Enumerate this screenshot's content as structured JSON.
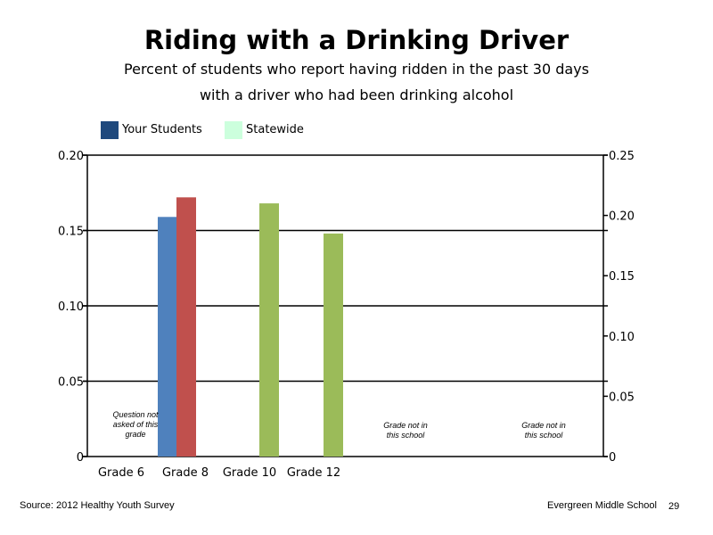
{
  "chart_data": {
    "type": "bar",
    "title": "Riding with a Drinking Driver",
    "subtitle_lines": [
      "Percent of students who report having ridden in the past 30 days",
      "with a driver who had been drinking alcohol"
    ],
    "categories": [
      "Grade 6",
      "Grade 8",
      "Grade 10",
      "Grade 12"
    ],
    "series": [
      {
        "name": "Your Students",
        "color": "#1f497d"
      },
      {
        "name": "Statewide",
        "color": "#ccffdd"
      }
    ],
    "bars": [
      {
        "category": "Grade 8",
        "value": 0.159,
        "axis": "left",
        "color": "#4f81bd"
      },
      {
        "category": "Grade 8",
        "value": 0.215,
        "axis": "right",
        "color": "#c0504d"
      },
      {
        "category": "Grade 10",
        "value": 0.21,
        "axis": "right",
        "color": "#9bbb59"
      },
      {
        "category": "Grade 12",
        "value": 0.185,
        "axis": "right",
        "color": "#9bbb59"
      }
    ],
    "left_axis": {
      "min": 0,
      "max": 0.2,
      "ticks": [
        "0",
        "0.05",
        "0.10",
        "0.15",
        "0.20"
      ],
      "values": [
        0,
        0.05,
        0.1,
        0.15,
        0.2
      ]
    },
    "right_axis": {
      "min": 0,
      "max": 0.25,
      "ticks": [
        "0",
        "0.05",
        "0.10",
        "0.15",
        "0.20",
        "0.25"
      ],
      "values": [
        0,
        0.05,
        0.1,
        0.15,
        0.2,
        0.25
      ]
    },
    "gridlines": true,
    "legend_position": "top-left",
    "annotations": [
      {
        "lines": [
          "Question not",
          "asked of this",
          "grade"
        ]
      },
      {
        "lines": [
          "Grade not in",
          "this school"
        ]
      },
      {
        "lines": [
          "Grade not in",
          "this school"
        ]
      }
    ]
  },
  "footer": {
    "source": "Source: 2012 Healthy Youth Survey",
    "school": "Evergreen Middle  School",
    "page_number": "29"
  }
}
